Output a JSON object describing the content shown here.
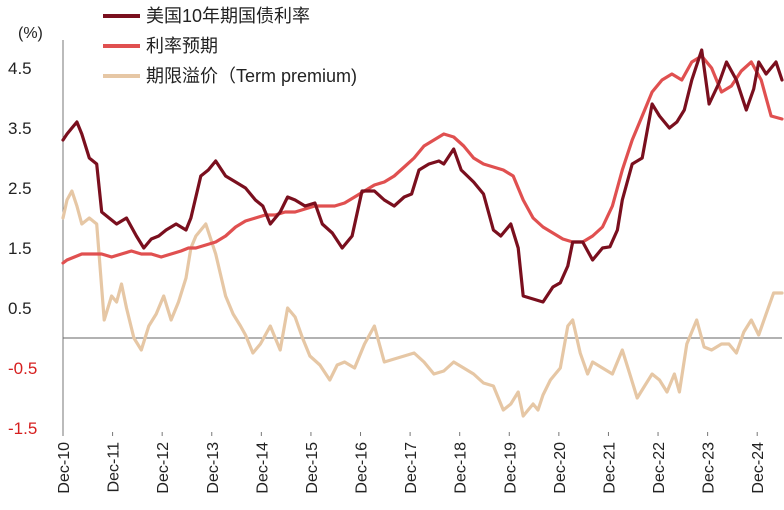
{
  "chart_data": {
    "type": "line",
    "y_unit": "(%)",
    "ylim": [
      -1.5,
      5.0
    ],
    "y_ticks": [
      "4.5",
      "3.5",
      "2.5",
      "1.5",
      "0.5",
      "-0.5",
      "-1.5"
    ],
    "y_tick_values": [
      4.5,
      3.5,
      2.5,
      1.5,
      0.5,
      -0.5,
      -1.5
    ],
    "x_ticks": [
      "Dec-10",
      "Dec-11",
      "Dec-12",
      "Dec-13",
      "Dec-14",
      "Dec-15",
      "Dec-16",
      "Dec-17",
      "Dec-18",
      "Dec-19",
      "Dec-20",
      "Dec-21",
      "Dec-22",
      "Dec-23",
      "Dec-24"
    ],
    "xlim": [
      2010.92,
      2025.42
    ],
    "grid": false,
    "zero_line": true,
    "legend_position": "top-left",
    "series": [
      {
        "name": "美国10年期国债利率",
        "color": "#7a0f1e",
        "x": [
          2010.92,
          2011.0,
          2011.1,
          2011.2,
          2011.3,
          2011.45,
          2011.6,
          2011.7,
          2011.85,
          2012.0,
          2012.2,
          2012.4,
          2012.55,
          2012.7,
          2012.85,
          2013.0,
          2013.2,
          2013.4,
          2013.5,
          2013.7,
          2013.85,
          2014.0,
          2014.2,
          2014.4,
          2014.6,
          2014.8,
          2014.95,
          2015.1,
          2015.3,
          2015.45,
          2015.6,
          2015.8,
          2016.0,
          2016.15,
          2016.35,
          2016.55,
          2016.75,
          2016.95,
          2017.2,
          2017.4,
          2017.6,
          2017.8,
          2017.95,
          2018.1,
          2018.3,
          2018.5,
          2018.6,
          2018.8,
          2018.95,
          2019.2,
          2019.4,
          2019.6,
          2019.75,
          2019.95,
          2020.1,
          2020.2,
          2020.4,
          2020.6,
          2020.8,
          2020.95,
          2021.1,
          2021.2,
          2021.4,
          2021.6,
          2021.8,
          2021.95,
          2022.1,
          2022.2,
          2022.4,
          2022.6,
          2022.8,
          2022.95,
          2023.15,
          2023.3,
          2023.45,
          2023.6,
          2023.8,
          2023.95,
          2024.15,
          2024.3,
          2024.5,
          2024.7,
          2024.85,
          2024.95,
          2025.1,
          2025.3,
          2025.42
        ],
        "values": [
          3.3,
          3.4,
          3.5,
          3.6,
          3.4,
          3.0,
          2.9,
          2.1,
          2.0,
          1.9,
          2.0,
          1.7,
          1.5,
          1.65,
          1.7,
          1.8,
          1.9,
          1.8,
          2.0,
          2.7,
          2.8,
          2.95,
          2.7,
          2.6,
          2.5,
          2.3,
          2.2,
          1.9,
          2.1,
          2.35,
          2.3,
          2.2,
          2.25,
          1.9,
          1.75,
          1.5,
          1.7,
          2.45,
          2.45,
          2.3,
          2.2,
          2.35,
          2.4,
          2.8,
          2.9,
          2.95,
          2.9,
          3.15,
          2.8,
          2.6,
          2.4,
          1.8,
          1.7,
          1.9,
          1.5,
          0.7,
          0.65,
          0.6,
          0.85,
          0.92,
          1.2,
          1.6,
          1.6,
          1.3,
          1.5,
          1.52,
          1.8,
          2.3,
          2.9,
          3.0,
          3.9,
          3.7,
          3.5,
          3.6,
          3.8,
          4.3,
          4.8,
          3.9,
          4.25,
          4.6,
          4.3,
          3.8,
          4.15,
          4.6,
          4.4,
          4.6,
          4.3
        ]
      },
      {
        "name": "利率预期",
        "color": "#e05050",
        "x": [
          2010.92,
          2011.0,
          2011.15,
          2011.3,
          2011.5,
          2011.7,
          2011.9,
          2012.1,
          2012.3,
          2012.5,
          2012.7,
          2012.9,
          2013.1,
          2013.3,
          2013.45,
          2013.6,
          2013.8,
          2014.0,
          2014.2,
          2014.4,
          2014.6,
          2014.8,
          2015.0,
          2015.2,
          2015.4,
          2015.6,
          2015.8,
          2016.0,
          2016.2,
          2016.4,
          2016.6,
          2016.8,
          2017.0,
          2017.2,
          2017.4,
          2017.6,
          2017.8,
          2018.0,
          2018.2,
          2018.4,
          2018.6,
          2018.8,
          2019.0,
          2019.2,
          2019.4,
          2019.6,
          2019.8,
          2020.0,
          2020.2,
          2020.4,
          2020.6,
          2020.8,
          2021.0,
          2021.2,
          2021.4,
          2021.6,
          2021.8,
          2022.0,
          2022.2,
          2022.4,
          2022.6,
          2022.8,
          2023.0,
          2023.2,
          2023.4,
          2023.6,
          2023.8,
          2024.0,
          2024.2,
          2024.4,
          2024.6,
          2024.8,
          2025.0,
          2025.2,
          2025.42
        ],
        "values": [
          1.25,
          1.3,
          1.35,
          1.4,
          1.4,
          1.4,
          1.35,
          1.4,
          1.45,
          1.4,
          1.4,
          1.35,
          1.4,
          1.45,
          1.5,
          1.5,
          1.55,
          1.6,
          1.7,
          1.85,
          1.95,
          2.0,
          2.05,
          2.05,
          2.1,
          2.1,
          2.15,
          2.2,
          2.2,
          2.2,
          2.25,
          2.35,
          2.45,
          2.55,
          2.6,
          2.7,
          2.85,
          3.0,
          3.2,
          3.3,
          3.4,
          3.35,
          3.2,
          3.0,
          2.9,
          2.85,
          2.8,
          2.7,
          2.3,
          2.0,
          1.85,
          1.75,
          1.65,
          1.6,
          1.6,
          1.7,
          1.85,
          2.2,
          2.8,
          3.3,
          3.7,
          4.1,
          4.3,
          4.4,
          4.3,
          4.6,
          4.7,
          4.5,
          4.1,
          4.2,
          4.45,
          4.6,
          4.3,
          3.7,
          3.65
        ]
      },
      {
        "name": "期限溢价（Term premium)",
        "color": "#e6c7a5",
        "x": [
          2010.92,
          2011.0,
          2011.1,
          2011.2,
          2011.3,
          2011.45,
          2011.6,
          2011.75,
          2011.9,
          2012.0,
          2012.1,
          2012.2,
          2012.35,
          2012.5,
          2012.65,
          2012.8,
          2012.95,
          2013.1,
          2013.25,
          2013.4,
          2013.5,
          2013.6,
          2013.8,
          2014.0,
          2014.2,
          2014.35,
          2014.5,
          2014.6,
          2014.75,
          2014.9,
          2015.1,
          2015.3,
          2015.45,
          2015.6,
          2015.75,
          2015.9,
          2016.1,
          2016.3,
          2016.45,
          2016.6,
          2016.8,
          2017.0,
          2017.2,
          2017.4,
          2017.6,
          2017.8,
          2018.0,
          2018.2,
          2018.4,
          2018.6,
          2018.8,
          2019.0,
          2019.2,
          2019.4,
          2019.6,
          2019.8,
          2019.95,
          2020.1,
          2020.2,
          2020.4,
          2020.5,
          2020.6,
          2020.75,
          2020.95,
          2021.1,
          2021.2,
          2021.35,
          2021.5,
          2021.6,
          2021.8,
          2022.0,
          2022.2,
          2022.35,
          2022.5,
          2022.65,
          2022.8,
          2022.95,
          2023.1,
          2023.25,
          2023.35,
          2023.5,
          2023.7,
          2023.85,
          2024.0,
          2024.2,
          2024.35,
          2024.5,
          2024.65,
          2024.8,
          2024.95,
          2025.1,
          2025.25,
          2025.42
        ],
        "values": [
          2.0,
          2.3,
          2.45,
          2.2,
          1.9,
          2.0,
          1.9,
          0.3,
          0.7,
          0.6,
          0.9,
          0.5,
          0.0,
          -0.2,
          0.2,
          0.4,
          0.7,
          0.3,
          0.6,
          1.0,
          1.5,
          1.7,
          1.9,
          1.4,
          0.7,
          0.4,
          0.2,
          0.05,
          -0.25,
          -0.1,
          0.2,
          -0.2,
          0.5,
          0.35,
          0.0,
          -0.3,
          -0.45,
          -0.7,
          -0.45,
          -0.4,
          -0.5,
          -0.1,
          0.2,
          -0.4,
          -0.35,
          -0.3,
          -0.25,
          -0.4,
          -0.6,
          -0.55,
          -0.4,
          -0.5,
          -0.6,
          -0.75,
          -0.8,
          -1.2,
          -1.1,
          -0.9,
          -1.3,
          -1.1,
          -1.2,
          -0.95,
          -0.7,
          -0.5,
          0.2,
          0.3,
          -0.25,
          -0.6,
          -0.4,
          -0.5,
          -0.6,
          -0.2,
          -0.6,
          -1.0,
          -0.8,
          -0.6,
          -0.7,
          -0.9,
          -0.6,
          -0.9,
          -0.1,
          0.3,
          -0.15,
          -0.2,
          -0.1,
          -0.1,
          -0.25,
          0.1,
          0.3,
          0.05,
          0.4,
          0.75,
          0.75
        ]
      }
    ]
  }
}
